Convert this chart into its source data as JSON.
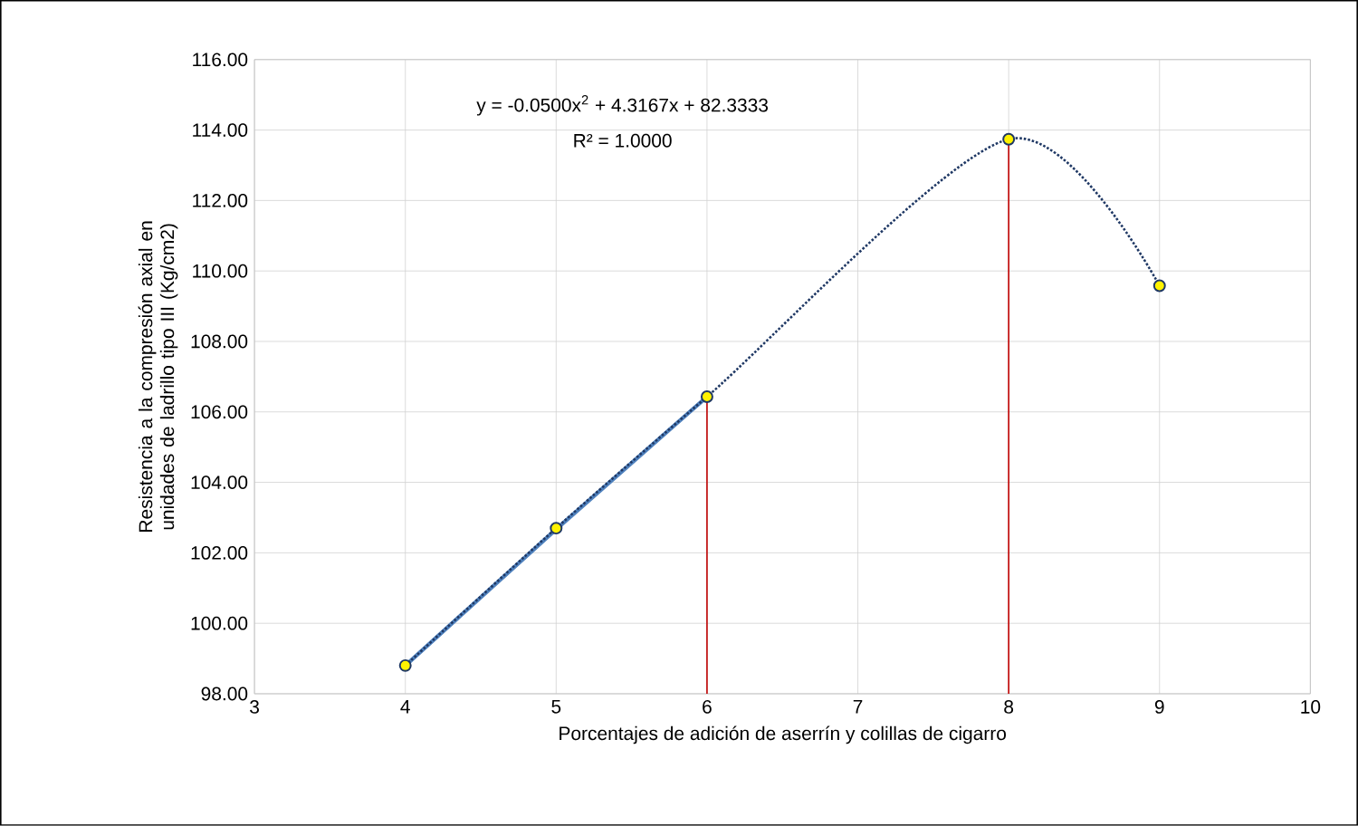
{
  "chart_data": {
    "type": "line",
    "xlabel": "Porcentajes de adición de aserrín y colillas de cigarro",
    "ylabel": "Resistencia a la compresión axial en unidades de ladrillo tipo III (Kg/cm2)",
    "annotations": [
      "y = -0.0500x$^{2}$ + 4.3167x + 82.3333",
      "R² = 1.0000"
    ],
    "xlim": [
      3,
      10
    ],
    "xticks": [
      3,
      4,
      5,
      6,
      7,
      8,
      9,
      10
    ],
    "ylim": [
      98,
      116
    ],
    "yticks": [
      {
        "value": 98,
        "label": "98.00"
      },
      {
        "value": 100,
        "label": "100.00"
      },
      {
        "value": 102,
        "label": "102.00"
      },
      {
        "value": 104,
        "label": "104.00"
      },
      {
        "value": 106,
        "label": "106.00"
      },
      {
        "value": 108,
        "label": "108.00"
      },
      {
        "value": 110,
        "label": "110.00"
      },
      {
        "value": 112,
        "label": "112.00"
      },
      {
        "value": 114,
        "label": "114.00"
      },
      {
        "value": 116,
        "label": "116.00"
      }
    ],
    "grid": true,
    "series": [
      {
        "color": "#1f3864",
        "x": [
          4,
          5,
          6,
          8,
          9
        ],
        "values": [
          98.8,
          102.7,
          106.43,
          113.74,
          109.58
        ],
        "marker": "circle",
        "line_style": "dotted"
      },
      {
        "color": "#4f81bd",
        "x": [
          4,
          5,
          6
        ],
        "values": [
          98.8,
          102.67,
          106.43
        ],
        "marker": "none",
        "line_style": "solid"
      },
      {
        "color": "#c00000",
        "x": [
          6,
          6
        ],
        "values": [
          98,
          106.43
        ],
        "marker": "none",
        "line_style": "solid"
      },
      {
        "color": "#c00000",
        "x": [
          8,
          8
        ],
        "values": [
          98,
          113.74
        ],
        "marker": "none",
        "line_style": "solid"
      }
    ]
  }
}
